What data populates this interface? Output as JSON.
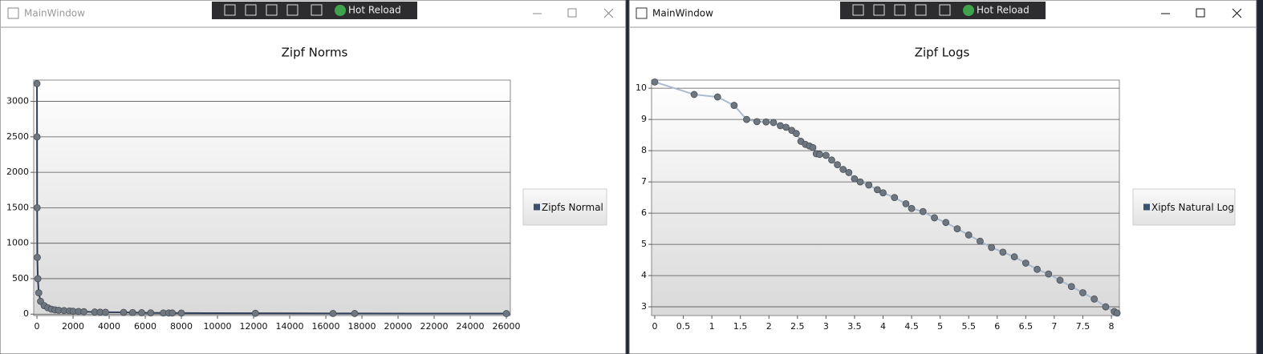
{
  "windows": [
    {
      "title": "MainWindow",
      "toolbar": "Hot Reload"
    },
    {
      "title": "MainWindow",
      "toolbar": "Hot Reload"
    }
  ],
  "chart_data": [
    {
      "type": "line",
      "title": "Zipf Norms",
      "legend": "right",
      "grid": true,
      "xlim": [
        -180,
        26220
      ],
      "ylim": [
        -20,
        3300
      ],
      "xticks": [
        0,
        2000,
        4000,
        6000,
        8000,
        10000,
        12000,
        14000,
        16000,
        18000,
        20000,
        22000,
        24000,
        26000
      ],
      "yticks": [
        0,
        500,
        1000,
        1500,
        2000,
        2500,
        3000
      ],
      "series": [
        {
          "name": "Zipfs Normal",
          "color": "#2f3f5a",
          "marker_color": "#6e7680",
          "x": [
            0,
            5,
            10,
            20,
            50,
            100,
            200,
            400,
            600,
            800,
            1000,
            1200,
            1500,
            1800,
            2000,
            2300,
            2600,
            3200,
            3500,
            3800,
            4800,
            5300,
            5800,
            6300,
            7000,
            7300,
            7500,
            8000,
            12100,
            16400,
            17600,
            26000
          ],
          "values": [
            3250,
            2500,
            1500,
            800,
            500,
            300,
            180,
            120,
            90,
            70,
            60,
            55,
            50,
            45,
            40,
            38,
            35,
            30,
            28,
            27,
            25,
            22,
            20,
            18,
            17,
            16,
            16,
            15,
            12,
            10,
            9,
            8
          ]
        }
      ]
    },
    {
      "type": "line",
      "title": "Zipf Logs",
      "legend": "right",
      "grid": true,
      "xlim": [
        -0.056,
        8.14
      ],
      "ylim": [
        2.72,
        10.26
      ],
      "xticks": [
        0,
        0.5,
        1,
        1.5,
        2,
        2.5,
        3,
        3.5,
        4,
        4.5,
        5,
        5.5,
        6,
        6.5,
        7,
        7.5,
        8
      ],
      "yticks": [
        3,
        4,
        5,
        6,
        7,
        8,
        9,
        10
      ],
      "series": [
        {
          "name": "Xipfs Natural Log",
          "color": "#a9bbd0",
          "marker_color": "#6e7680",
          "x": [
            0,
            0.69,
            1.1,
            1.39,
            1.61,
            1.79,
            1.95,
            2.08,
            2.2,
            2.3,
            2.4,
            2.48,
            2.56,
            2.64,
            2.71,
            2.77,
            2.83,
            2.89,
            3.0,
            3.1,
            3.2,
            3.3,
            3.4,
            3.5,
            3.6,
            3.75,
            3.9,
            4.0,
            4.2,
            4.4,
            4.5,
            4.7,
            4.9,
            5.1,
            5.3,
            5.5,
            5.7,
            5.9,
            6.1,
            6.3,
            6.5,
            6.7,
            6.9,
            7.1,
            7.3,
            7.5,
            7.7,
            7.9,
            8.05,
            8.1
          ],
          "values": [
            10.2,
            9.8,
            9.72,
            9.45,
            9.0,
            8.93,
            8.92,
            8.9,
            8.8,
            8.75,
            8.65,
            8.55,
            8.3,
            8.2,
            8.15,
            8.1,
            7.9,
            7.88,
            7.85,
            7.7,
            7.55,
            7.4,
            7.3,
            7.1,
            7.0,
            6.9,
            6.75,
            6.65,
            6.5,
            6.3,
            6.15,
            6.05,
            5.85,
            5.7,
            5.5,
            5.3,
            5.1,
            4.9,
            4.75,
            4.6,
            4.4,
            4.2,
            4.05,
            3.85,
            3.65,
            3.45,
            3.25,
            3.0,
            2.85,
            2.8
          ]
        }
      ]
    }
  ]
}
